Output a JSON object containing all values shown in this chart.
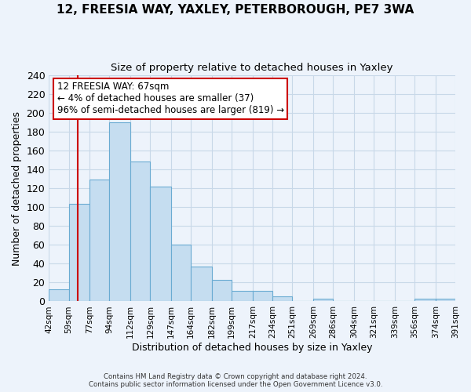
{
  "title": "12, FREESIA WAY, YAXLEY, PETERBOROUGH, PE7 3WA",
  "subtitle": "Size of property relative to detached houses in Yaxley",
  "xlabel": "Distribution of detached houses by size in Yaxley",
  "ylabel": "Number of detached properties",
  "bin_labels": [
    "42sqm",
    "59sqm",
    "77sqm",
    "94sqm",
    "112sqm",
    "129sqm",
    "147sqm",
    "164sqm",
    "182sqm",
    "199sqm",
    "217sqm",
    "234sqm",
    "251sqm",
    "269sqm",
    "286sqm",
    "304sqm",
    "321sqm",
    "339sqm",
    "356sqm",
    "374sqm",
    "391sqm"
  ],
  "bin_edges": [
    42,
    59,
    77,
    94,
    112,
    129,
    147,
    164,
    182,
    199,
    217,
    234,
    251,
    269,
    286,
    304,
    321,
    339,
    356,
    374,
    391
  ],
  "bar_heights": [
    13,
    103,
    129,
    190,
    148,
    122,
    60,
    37,
    23,
    11,
    11,
    5,
    0,
    3,
    0,
    0,
    0,
    0,
    3,
    3
  ],
  "ylim": [
    0,
    240
  ],
  "yticks": [
    0,
    20,
    40,
    60,
    80,
    100,
    120,
    140,
    160,
    180,
    200,
    220,
    240
  ],
  "bar_color": "#c5ddf0",
  "bar_edge_color": "#6aabd2",
  "grid_color": "#c8d8e8",
  "vline_x": 67,
  "vline_color": "#cc0000",
  "annotation_title": "12 FREESIA WAY: 67sqm",
  "annotation_line1": "← 4% of detached houses are smaller (37)",
  "annotation_line2": "96% of semi-detached houses are larger (819) →",
  "annotation_box_color": "#ffffff",
  "annotation_box_edge_color": "#cc0000",
  "footer_line1": "Contains HM Land Registry data © Crown copyright and database right 2024.",
  "footer_line2": "Contains public sector information licensed under the Open Government Licence v3.0.",
  "background_color": "#edf3fb",
  "title_fontsize": 11,
  "subtitle_fontsize": 9.5
}
